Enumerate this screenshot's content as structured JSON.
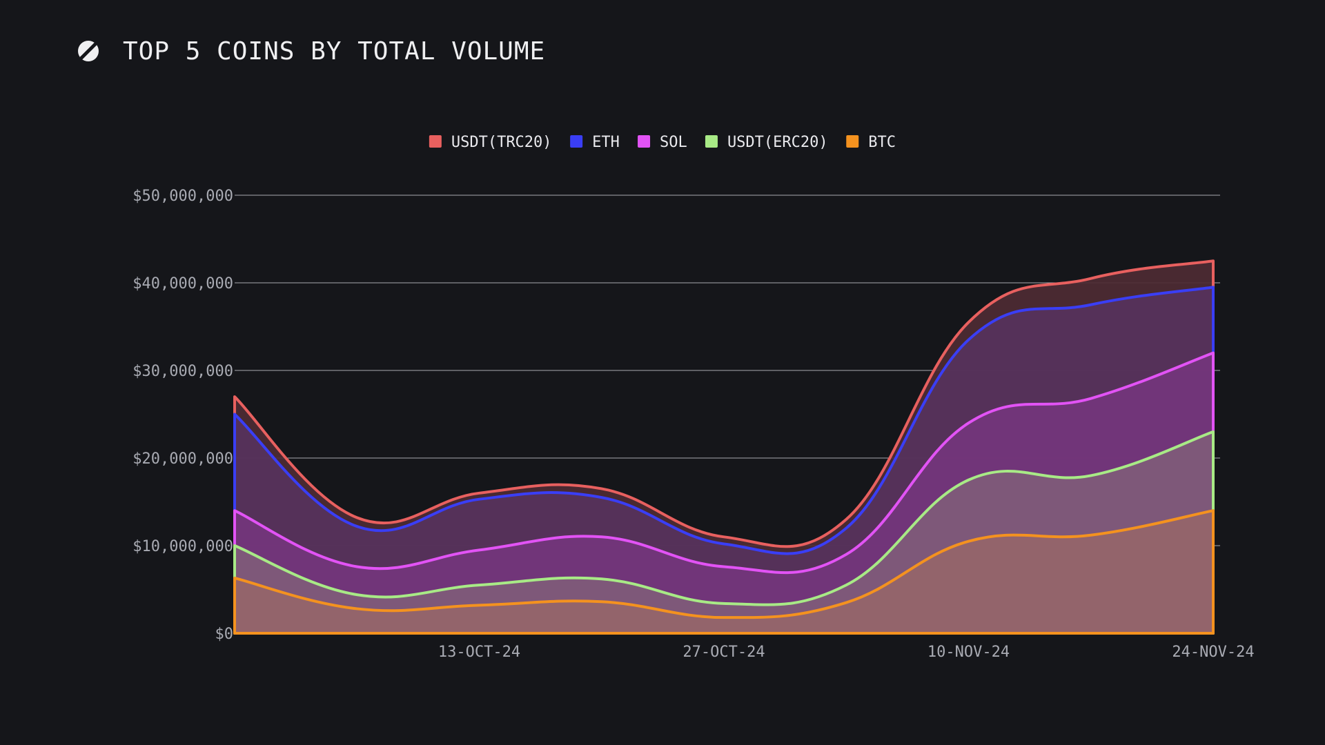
{
  "header": {
    "title": "TOP 5 COINS BY TOTAL VOLUME",
    "logo_icon": "slash-circle-logo"
  },
  "colors": {
    "background": "#15161a",
    "grid": "#cfd0d6",
    "tick_text": "#a9abb3"
  },
  "chart_data": {
    "type": "area",
    "stacked": false,
    "x": [
      "29-SEP-24",
      "06-OCT-24",
      "13-OCT-24",
      "20-OCT-24",
      "27-OCT-24",
      "03-NOV-24",
      "10-NOV-24",
      "17-NOV-24",
      "24-NOV-24"
    ],
    "x_tick_labels": [
      "13-OCT-24",
      "27-OCT-24",
      "10-NOV-24",
      "24-NOV-24"
    ],
    "y_ticks": [
      0,
      10000000,
      20000000,
      30000000,
      40000000,
      50000000
    ],
    "y_tick_labels": [
      "$0",
      "$10,000,000",
      "$20,000,000",
      "$30,000,000",
      "$40,000,000",
      "$50,000,000"
    ],
    "ylim": [
      0,
      50000000
    ],
    "grid": "horizontal",
    "legend_position": "top-center",
    "series": [
      {
        "name": "USDT(TRC20)",
        "color": "#e8605f",
        "fill": "#4e2b33",
        "values": [
          27000000,
          13200000,
          16000000,
          16500000,
          11000000,
          13000000,
          35500000,
          40500000,
          42500000
        ]
      },
      {
        "name": "ETH",
        "color": "#3a3ef5",
        "fill": "#57325c",
        "values": [
          25000000,
          12200000,
          15300000,
          15500000,
          10200000,
          12000000,
          33500000,
          37500000,
          39500000
        ]
      },
      {
        "name": "SOL",
        "color": "#e253f5",
        "fill": "#74357c",
        "values": [
          14000000,
          7600000,
          9500000,
          11000000,
          7600000,
          9000000,
          24000000,
          26800000,
          32000000
        ]
      },
      {
        "name": "USDT(ERC20)",
        "color": "#a8ea86",
        "fill": "#7f5b79",
        "values": [
          10000000,
          4400000,
          5500000,
          6200000,
          3400000,
          5500000,
          17500000,
          18000000,
          23000000
        ]
      },
      {
        "name": "BTC",
        "color": "#f4921f",
        "fill": "#95656a",
        "values": [
          6300000,
          2800000,
          3200000,
          3600000,
          1800000,
          3500000,
          10500000,
          11200000,
          14000000
        ]
      }
    ]
  }
}
